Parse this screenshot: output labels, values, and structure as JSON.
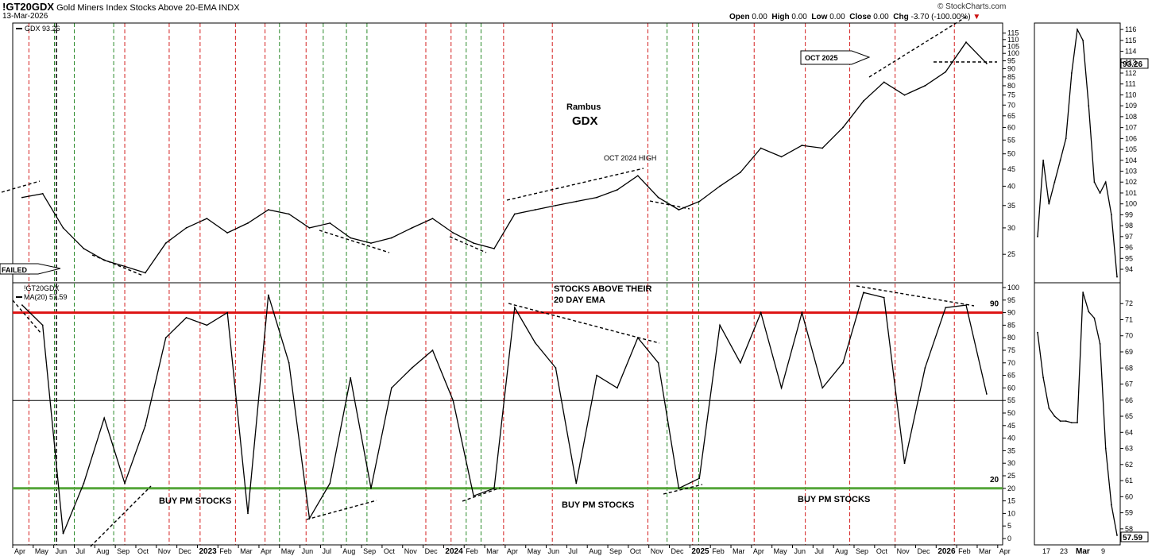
{
  "header": {
    "symbol": "!GT20GDX",
    "description": "Gold Miners Index Stocks Above 20-EMA",
    "exchange": "INDX",
    "date": "13-Mar-2026",
    "brand": "© StockCharts.com",
    "open_label": "Open",
    "open_value": "0.00",
    "high_label": "High",
    "high_value": "0.00",
    "low_label": "Low",
    "low_value": "0.00",
    "close_label": "Close",
    "close_value": "0.00",
    "chg_label": "Chg",
    "chg_value": "-3.70 (-100.00%)",
    "chg_color": "#cc1111"
  },
  "chart_data": [
    {
      "type": "line",
      "panel": "price",
      "legend": "GDX 93.26",
      "last_value_tag": "93.26",
      "scale": "log",
      "ylim": [
        21,
        118
      ],
      "ticks": [
        25,
        30,
        35,
        40,
        45,
        50,
        55,
        60,
        65,
        70,
        75,
        80,
        85,
        90,
        95,
        100,
        105,
        110,
        115
      ],
      "x_labels": [
        "Apr",
        "May",
        "Jun",
        "Jul",
        "Aug",
        "Sep",
        "Oct",
        "Nov",
        "Dec",
        "2023",
        "Feb",
        "Mar",
        "Apr",
        "May",
        "Jun",
        "Jul",
        "Aug",
        "Sep",
        "Oct",
        "Nov",
        "Dec",
        "2024",
        "Feb",
        "Mar",
        "Apr",
        "May",
        "Jun",
        "Jul",
        "Aug",
        "Sep",
        "Oct",
        "Nov",
        "Dec",
        "2025",
        "Feb",
        "Mar",
        "Apr",
        "May",
        "Jun",
        "Jul",
        "Aug",
        "Sep",
        "Oct",
        "Nov",
        "Dec",
        "2026",
        "Feb",
        "Mar",
        "Apr"
      ],
      "x_start": "2022-04",
      "x_end": "2026-04",
      "series": [
        {
          "x": [
            "2022-04",
            "2022-05",
            "2022-06",
            "2022-07",
            "2022-08",
            "2022-09",
            "2022-10",
            "2022-11",
            "2022-12",
            "2023-01",
            "2023-02",
            "2023-03",
            "2023-04",
            "2023-05",
            "2023-06",
            "2023-07",
            "2023-08",
            "2023-09",
            "2023-10",
            "2023-11",
            "2023-12",
            "2024-01",
            "2024-02",
            "2024-03",
            "2024-04",
            "2024-05",
            "2024-06",
            "2024-07",
            "2024-08",
            "2024-09",
            "2024-10",
            "2024-11",
            "2024-12",
            "2025-01",
            "2025-02",
            "2025-03",
            "2025-04",
            "2025-05",
            "2025-06",
            "2025-07",
            "2025-08",
            "2025-09",
            "2025-10",
            "2025-11",
            "2025-12",
            "2026-01",
            "2026-02",
            "2026-03"
          ],
          "values": [
            37,
            38,
            30,
            26,
            24,
            23,
            22,
            27,
            30,
            32,
            29,
            31,
            34,
            33,
            30,
            31,
            28,
            27,
            28,
            30,
            32,
            29,
            27,
            26,
            33,
            34,
            35,
            36,
            37,
            39,
            43,
            37,
            34,
            36,
            40,
            44,
            52,
            49,
            53,
            52,
            60,
            72,
            82,
            75,
            80,
            88,
            108,
            93.26
          ]
        }
      ],
      "annotations": {
        "center": "Rambus",
        "center_big": "GDX",
        "oct2024": "OCT 2024 HIGH",
        "oct2025": "OCT 2025",
        "failed": "FAILED"
      }
    },
    {
      "type": "line",
      "panel": "breadth",
      "legend_symbol": "!GT20GDX",
      "legend_ma": "MA(20) 57.59",
      "last_value_tag": "57.59",
      "ylim": [
        0,
        100
      ],
      "ticks": [
        0,
        5,
        10,
        15,
        20,
        25,
        30,
        35,
        40,
        45,
        50,
        55,
        60,
        65,
        70,
        75,
        80,
        85,
        90,
        95,
        100
      ],
      "reference_lines": [
        {
          "value": 90,
          "color": "#dd1111",
          "label": "90"
        },
        {
          "value": 55,
          "color": "#000000",
          "label": ""
        },
        {
          "value": 20,
          "color": "#55a63a",
          "label": "20"
        }
      ],
      "series": [
        {
          "x": [
            "2022-04",
            "2022-05",
            "2022-06",
            "2022-07",
            "2022-08",
            "2022-09",
            "2022-10",
            "2022-11",
            "2022-12",
            "2023-01",
            "2023-02",
            "2023-03",
            "2023-04",
            "2023-05",
            "2023-06",
            "2023-07",
            "2023-08",
            "2023-09",
            "2023-10",
            "2023-11",
            "2023-12",
            "2024-01",
            "2024-02",
            "2024-03",
            "2024-04",
            "2024-05",
            "2024-06",
            "2024-07",
            "2024-08",
            "2024-09",
            "2024-10",
            "2024-11",
            "2024-12",
            "2025-01",
            "2025-02",
            "2025-03",
            "2025-04",
            "2025-05",
            "2025-06",
            "2025-07",
            "2025-08",
            "2025-09",
            "2025-10",
            "2025-11",
            "2025-12",
            "2026-01",
            "2026-02",
            "2026-03"
          ],
          "values": [
            93,
            85,
            2,
            22,
            48,
            22,
            45,
            80,
            88,
            85,
            90,
            10,
            97,
            70,
            8,
            22,
            64,
            20,
            60,
            68,
            75,
            55,
            17,
            20,
            92,
            78,
            68,
            22,
            65,
            60,
            80,
            70,
            20,
            24,
            85,
            70,
            90,
            60,
            90,
            60,
            70,
            98,
            96,
            30,
            68,
            92,
            93,
            57.59
          ]
        }
      ],
      "annotations": {
        "title_line1": "STOCKS ABOVE THEIR",
        "title_line2": "20 DAY EMA",
        "buy": "BUY PM STOCKS"
      }
    },
    {
      "type": "line",
      "panel": "price-zoom",
      "ticks": [
        94,
        95,
        96,
        97,
        98,
        99,
        100,
        101,
        102,
        103,
        104,
        105,
        106,
        107,
        108,
        109,
        110,
        111,
        112,
        113,
        114,
        115,
        116
      ],
      "ylim": [
        93.2,
        116.3
      ],
      "x_labels": [
        "17",
        "23",
        "Mar",
        "9"
      ],
      "series": [
        {
          "values": [
            97,
            104,
            100,
            102,
            104,
            106,
            112,
            116,
            115,
            109,
            102,
            101,
            102,
            99,
            93.3
          ]
        }
      ]
    },
    {
      "type": "line",
      "panel": "breadth-zoom",
      "ticks": [
        58,
        59,
        60,
        61,
        62,
        63,
        64,
        65,
        66,
        67,
        68,
        69,
        70,
        71,
        72
      ],
      "ylim": [
        57.4,
        72.9
      ],
      "series": [
        {
          "values": [
            70.2,
            67.4,
            65.5,
            65.0,
            64.7,
            64.7,
            64.6,
            64.6,
            72.7,
            71.5,
            71.1,
            69.5,
            63.0,
            59.5,
            57.6
          ]
        }
      ]
    }
  ],
  "vertical_lines": {
    "red": [
      "2022-04-25",
      "2022-09-15",
      "2022-11-20",
      "2023-01-05",
      "2023-02-27",
      "2023-04-10",
      "2023-06-10",
      "2023-12-05",
      "2024-01-12",
      "2024-03-29",
      "2024-06-10",
      "2024-10-30",
      "2025-01-05",
      "2025-04-05",
      "2025-06-20",
      "2025-08-25",
      "2025-11-01",
      "2026-01-28"
    ],
    "green": [
      "2022-06-02",
      "2022-07-01",
      "2022-08-29",
      "2023-05-01",
      "2023-07-05",
      "2023-08-09",
      "2023-09-09",
      "2024-02-04",
      "2024-02-26",
      "2024-11-28",
      "2025-01-14"
    ],
    "black": [
      "2022-06-05"
    ]
  }
}
